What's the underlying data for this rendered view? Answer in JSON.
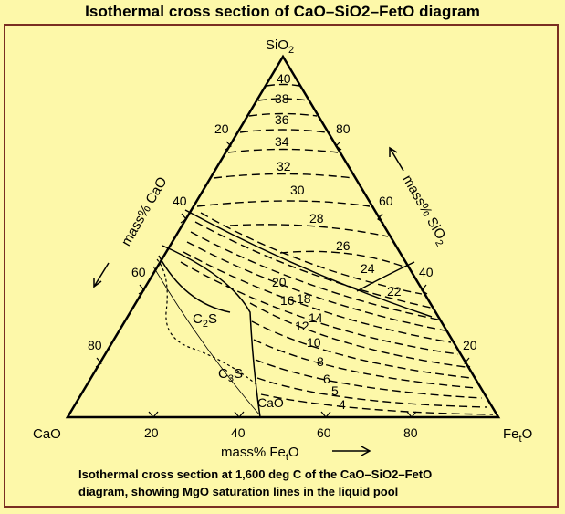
{
  "title": "Isothermal cross section of CaO–SiO2–FetO diagram",
  "vertices": {
    "top": {
      "main": "SiO",
      "sub": "2"
    },
    "left": "CaO",
    "right": {
      "main": "Fe",
      "sub": "t",
      "tail": "O"
    }
  },
  "axis_labels": {
    "left": "mass% CaO",
    "right": {
      "main": "mass% SiO",
      "sub": "2"
    },
    "bottom": {
      "main": "mass% Fe",
      "sub": "t",
      "tail": "O"
    }
  },
  "ticks": {
    "left_edge": [
      "20",
      "40",
      "60",
      "80"
    ],
    "right_edge": [
      "80",
      "60",
      "40",
      "20"
    ],
    "bottom_edge": [
      "20",
      "40",
      "60",
      "80"
    ]
  },
  "phase_labels": {
    "c2s": {
      "main": "C",
      "sub": "2",
      "tail": "S"
    },
    "c3s": {
      "main": "C",
      "sub": "3",
      "tail": "S"
    },
    "cao": "CaO"
  },
  "mgo_saturation_labels": [
    "40",
    "38",
    "36",
    "34",
    "32",
    "30",
    "28",
    "26",
    "24",
    "22",
    "20",
    "18",
    "16",
    "14",
    "12",
    "10",
    "8",
    "6",
    "5",
    "4"
  ],
  "caption_line1": "Isothermal cross section at 1,600 deg C of the CaO–SiO2–FetO",
  "caption_line2": "diagram, showing MgO saturation lines in the liquid pool",
  "colors": {
    "background": "#fdf8a9",
    "border": "#7a2e22",
    "lines": "#000000"
  }
}
